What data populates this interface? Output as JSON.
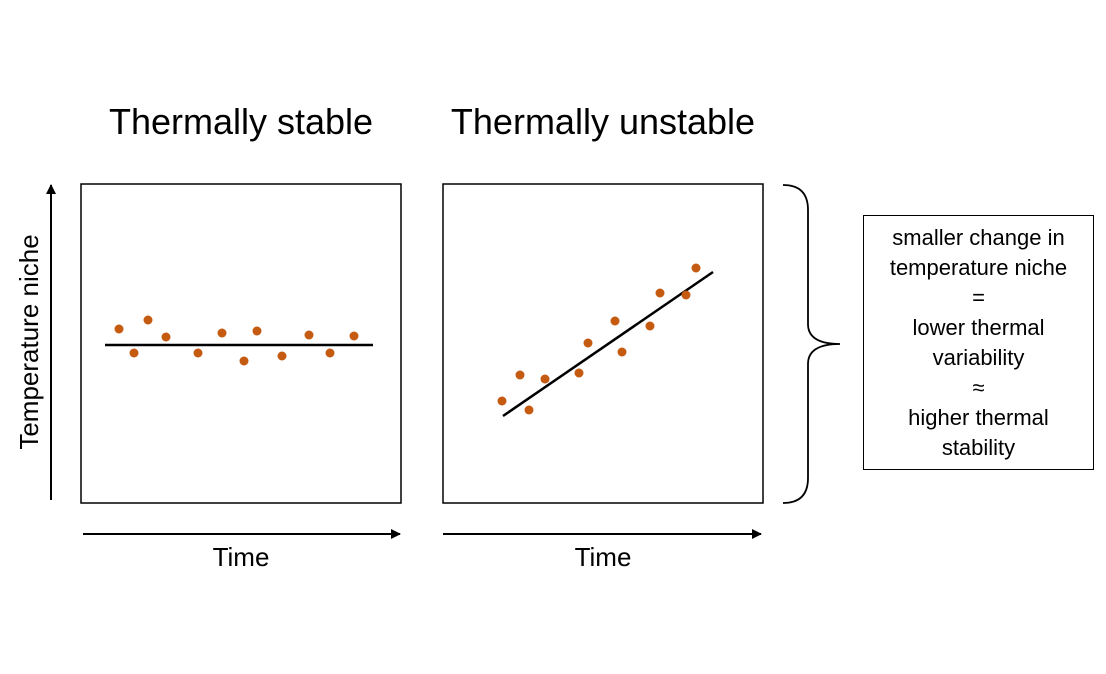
{
  "panels": [
    {
      "title": "Thermally stable",
      "xlabel": "Time",
      "ylabel": "Temperature niche",
      "points": [
        [
          0.12,
          0.57
        ],
        [
          0.17,
          0.47
        ],
        [
          0.21,
          0.57
        ],
        [
          0.27,
          0.52
        ],
        [
          0.37,
          0.47
        ],
        [
          0.44,
          0.53
        ],
        [
          0.53,
          0.45
        ],
        [
          0.59,
          0.53
        ],
        [
          0.67,
          0.46
        ],
        [
          0.77,
          0.52
        ],
        [
          0.87,
          0.47
        ],
        [
          0.94,
          0.52
        ]
      ],
      "trend": [
        [
          0.08,
          0.5
        ],
        [
          0.91,
          0.5
        ]
      ],
      "point_color": "#C55A11"
    },
    {
      "title": "Thermally unstable",
      "xlabel": "Time",
      "point_color": "#C55A11"
    }
  ],
  "summary": {
    "lines": [
      "smaller change in",
      "temperature niche",
      "=",
      "lower thermal",
      "variability",
      "≈",
      "higher thermal",
      "stability"
    ]
  },
  "colors": {
    "points": "#C55A11",
    "lines": "#000000"
  }
}
